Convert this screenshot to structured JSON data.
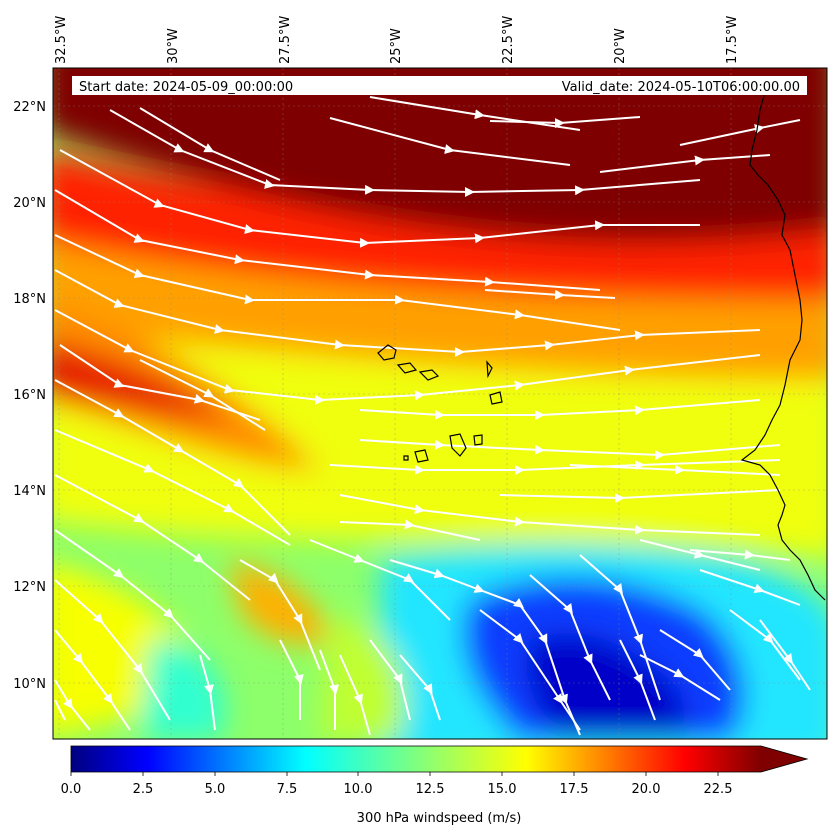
{
  "header": {
    "start_date": "Start date: 2024-05-09_00:00:00",
    "valid_date": "Valid_date: 2024-05-10T06:00:00.00"
  },
  "map": {
    "lon_labels": [
      "32.5°W",
      "30°W",
      "27.5°W",
      "25°W",
      "22.5°W",
      "20°W",
      "17.5°W"
    ],
    "lat_labels": [
      "22°N",
      "20°N",
      "18°N",
      "16°N",
      "14°N",
      "12°N",
      "10°N"
    ],
    "field": "300 hPa windspeed",
    "gridlines": true,
    "coastlines": [
      "Cape Verde islands",
      "West African coast"
    ]
  },
  "colorbar": {
    "label": "300 hPa windspeed (m/s)",
    "ticks": [
      "0.0",
      "2.5",
      "5.0",
      "7.5",
      "10.0",
      "12.5",
      "15.0",
      "17.5",
      "20.0",
      "22.5"
    ],
    "min": 0,
    "max": 24,
    "extend": "max",
    "colormap": "jet"
  }
}
